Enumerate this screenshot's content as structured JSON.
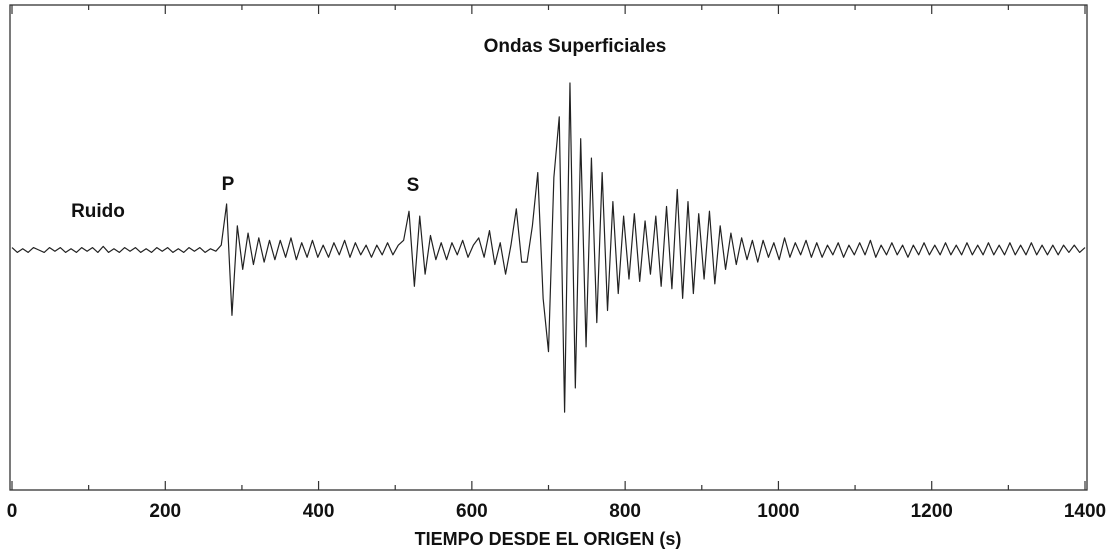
{
  "chart_data": {
    "type": "line",
    "xlabel": "TIEMPO DESDE EL ORIGEN (s)",
    "annotations": [
      "Ondas Superficiales",
      "Ruido",
      "P",
      "S"
    ],
    "xlim": [
      0,
      1400
    ],
    "xticks": [
      0,
      200,
      400,
      600,
      800,
      1000,
      1200,
      1400
    ],
    "xminor_ticks": [
      100,
      300,
      500,
      700,
      900,
      1100,
      1300
    ],
    "ylim": [
      -1,
      1
    ],
    "x": [
      0,
      7,
      14,
      21,
      28,
      35,
      42,
      49,
      56,
      63,
      70,
      77,
      84,
      91,
      98,
      105,
      112,
      119,
      126,
      133,
      140,
      147,
      154,
      161,
      168,
      175,
      182,
      189,
      196,
      203,
      210,
      217,
      224,
      231,
      238,
      245,
      252,
      259,
      266,
      273,
      280,
      287,
      294,
      301,
      308,
      315,
      322,
      329,
      336,
      343,
      350,
      357,
      364,
      371,
      378,
      385,
      392,
      399,
      406,
      413,
      420,
      427,
      434,
      441,
      448,
      455,
      462,
      469,
      476,
      483,
      490,
      497,
      504,
      511,
      518,
      525,
      532,
      539,
      546,
      553,
      560,
      567,
      574,
      581,
      588,
      595,
      602,
      609,
      616,
      623,
      630,
      637,
      644,
      651,
      658,
      665,
      672,
      679,
      686,
      693,
      700,
      707,
      714,
      721,
      728,
      735,
      742,
      749,
      756,
      763,
      770,
      777,
      784,
      791,
      798,
      805,
      812,
      819,
      826,
      833,
      840,
      847,
      854,
      861,
      868,
      875,
      882,
      889,
      896,
      903,
      910,
      917,
      924,
      931,
      938,
      945,
      952,
      959,
      966,
      973,
      980,
      987,
      994,
      1001,
      1008,
      1015,
      1022,
      1029,
      1036,
      1043,
      1050,
      1057,
      1064,
      1071,
      1078,
      1085,
      1092,
      1099,
      1106,
      1113,
      1120,
      1127,
      1134,
      1141,
      1148,
      1155,
      1162,
      1169,
      1176,
      1183,
      1190,
      1197,
      1204,
      1211,
      1218,
      1225,
      1232,
      1239,
      1246,
      1253,
      1260,
      1267,
      1274,
      1281,
      1288,
      1295,
      1302,
      1309,
      1316,
      1323,
      1330,
      1337,
      1344,
      1351,
      1358,
      1365,
      1372,
      1379,
      1386,
      1393,
      1400
    ],
    "series": [
      {
        "color": "#222222",
        "values": [
          0.01,
          -0.01,
          0.005,
          -0.01,
          0.01,
          0,
          -0.01,
          0.01,
          -0.005,
          0.01,
          -0.01,
          0.005,
          -0.01,
          0.01,
          -0.005,
          0.01,
          -0.01,
          0.015,
          -0.01,
          0.005,
          -0.01,
          0.01,
          -0.005,
          0.01,
          -0.01,
          0.005,
          -0.01,
          0.01,
          -0.005,
          0.01,
          -0.01,
          0.005,
          -0.01,
          0.01,
          -0.005,
          0.01,
          -0.01,
          0.005,
          -0.005,
          0.02,
          0.19,
          -0.27,
          0.1,
          -0.08,
          0.07,
          -0.06,
          0.05,
          -0.05,
          0.04,
          -0.04,
          0.04,
          -0.03,
          0.05,
          -0.04,
          0.03,
          -0.03,
          0.04,
          -0.03,
          0.02,
          -0.03,
          0.03,
          -0.02,
          0.04,
          -0.03,
          0.03,
          -0.02,
          0.02,
          -0.03,
          0.02,
          -0.02,
          0.03,
          -0.02,
          0.02,
          0.04,
          0.16,
          -0.15,
          0.14,
          -0.1,
          0.06,
          -0.04,
          0.03,
          -0.04,
          0.03,
          -0.02,
          0.04,
          -0.03,
          0.02,
          0.05,
          -0.03,
          0.08,
          -0.06,
          0.03,
          -0.1,
          0.02,
          0.17,
          -0.05,
          -0.05,
          0.1,
          0.32,
          -0.2,
          -0.42,
          0.3,
          0.55,
          -0.67,
          0.69,
          -0.57,
          0.46,
          -0.4,
          0.38,
          -0.3,
          0.32,
          -0.25,
          0.2,
          -0.18,
          0.14,
          -0.12,
          0.15,
          -0.13,
          0.12,
          -0.1,
          0.14,
          -0.15,
          0.18,
          -0.16,
          0.25,
          -0.2,
          0.2,
          -0.18,
          0.15,
          -0.12,
          0.16,
          -0.14,
          0.1,
          -0.08,
          0.07,
          -0.06,
          0.05,
          -0.04,
          0.04,
          -0.05,
          0.04,
          -0.03,
          0.03,
          -0.04,
          0.05,
          -0.03,
          0.03,
          -0.02,
          0.04,
          -0.03,
          0.03,
          -0.03,
          0.02,
          -0.02,
          0.03,
          -0.03,
          0.02,
          -0.02,
          0.03,
          -0.02,
          0.04,
          -0.03,
          0.02,
          -0.02,
          0.03,
          -0.02,
          0.02,
          -0.03,
          0.02,
          -0.02,
          0.03,
          -0.02,
          0.02,
          -0.02,
          0.03,
          -0.02,
          0.02,
          -0.02,
          0.03,
          -0.02,
          0.02,
          -0.02,
          0.03,
          -0.02,
          0.02,
          -0.02,
          0.03,
          -0.02,
          0.02,
          -0.02,
          0.03,
          -0.02,
          0.02,
          -0.02,
          0.02,
          -0.02,
          0.02,
          -0.01,
          0.02,
          -0.01,
          0.01
        ]
      }
    ]
  }
}
